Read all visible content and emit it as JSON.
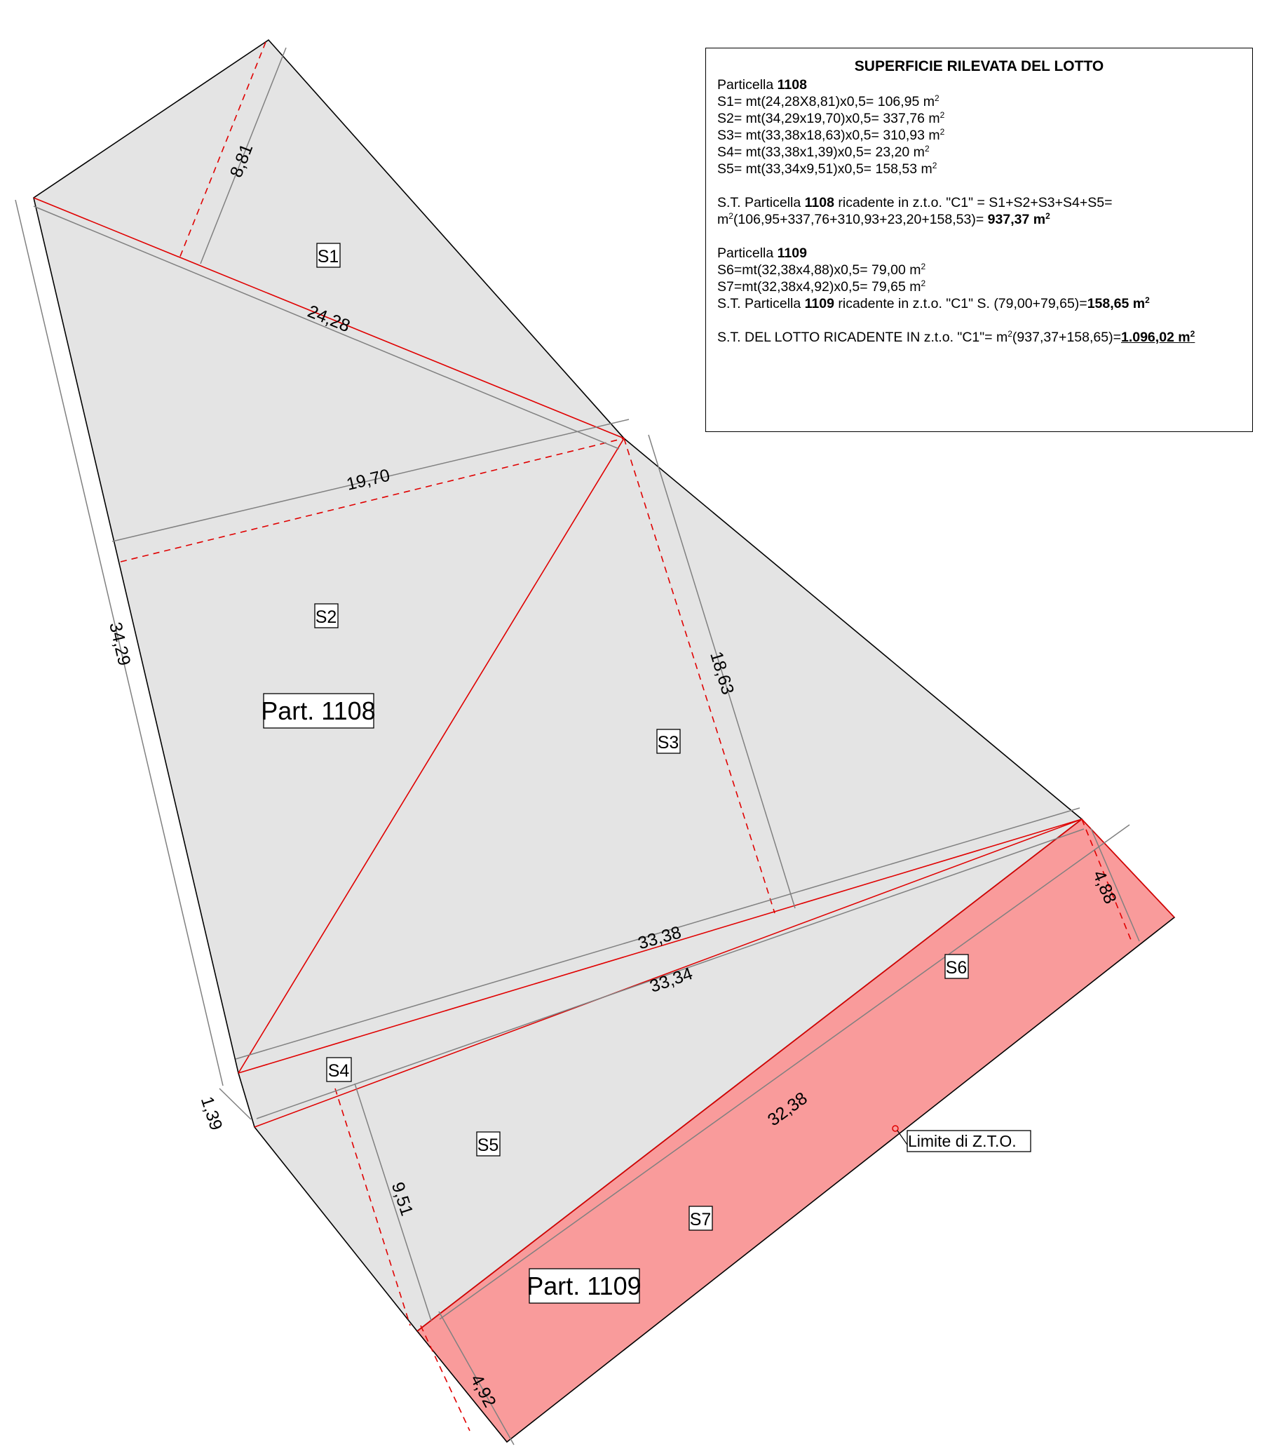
{
  "legend": {
    "title": "SUPERFICIE RILEVATA DEL LOTTO",
    "particella_word": "Particella",
    "p1108": "1108",
    "p1109": "1109",
    "sq": "2",
    "m2_unit": "m",
    "s1": "S1= mt(24,28X8,81)x0,5= 106,95 m",
    "s2": "S2= mt(34,29x19,70)x0,5= 337,76 m",
    "s3": "S3= mt(33,38x18,63)x0,5= 310,93 m",
    "s4": "S4= mt(33,38x1,39)x0,5= 23,20 m",
    "s5": "S5= mt(33,34x9,51)x0,5= 158,53 m",
    "st1108_pre": "S.T. Particella ",
    "st1108_post": " ricadente in z.t.o. \"C1\" = S1+S2+S3+S4+S5=",
    "st1108_formula": "(106,95+337,76+310,93+23,20+158,53)= ",
    "st1108_total": "937,37 m",
    "s6": "S6=mt(32,38x4,88)x0,5= 79,00 m",
    "s7": "S7=mt(32,38x4,92)x0,5= 79,65 m",
    "st1109_pre": "S.T. Particella ",
    "st1109_post": " ricadente in z.t.o. \"C1\" S. (79,00+79,65)=",
    "st1109_total": "158,65 m",
    "lotto_pre": "S.T. DEL LOTTO RICADENTE IN z.t.o. \"C1\"= m",
    "lotto_formula": "(937,37+158,65)=",
    "lotto_total": "1.096,02 m"
  },
  "plan": {
    "areas": [
      "S1",
      "S2",
      "S3",
      "S4",
      "S5",
      "S6",
      "S7"
    ],
    "part_1108": "Part. 1108",
    "part_1109": "Part. 1109",
    "limit_label": "Limite di Z.T.O.",
    "dims": {
      "d881": "8,81",
      "d2428": "24,28",
      "d1970": "19,70",
      "d3429": "34,29",
      "d1863": "18,63",
      "d3338": "33,38",
      "d3334": "33,34",
      "d139": "1,39",
      "d951": "9,51",
      "d3238": "32,38",
      "d488": "4,88",
      "d492": "4,92"
    },
    "colors": {
      "lot_fill": "#e4e4e4",
      "zone_fill": "#f99b9b",
      "boundary": "#000000",
      "diagonals": "#e00000",
      "dimension_lines": "#808080"
    }
  }
}
